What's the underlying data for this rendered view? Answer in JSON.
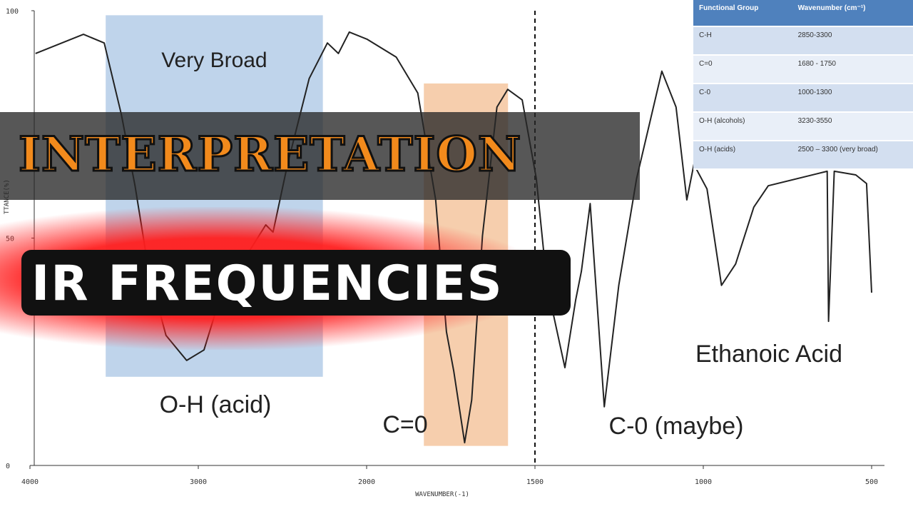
{
  "chart_data": {
    "type": "line",
    "x_label": "WAVENUMBER(-1)",
    "y_label": "TTANCE(%)",
    "xlim": [
      4000,
      500
    ],
    "xticks": [
      4000,
      3000,
      2000,
      1500,
      1000,
      500
    ],
    "ylim": [
      0,
      100
    ],
    "yticks": [
      0,
      50,
      100
    ],
    "color": "#222222",
    "x": [
      3967,
      3682,
      3559,
      3457,
      3376,
      3294,
      3192,
      3069,
      2966,
      2901,
      2772,
      2599,
      2556,
      2470,
      2341,
      2233,
      2168,
      2103,
      1998,
      1912,
      1848,
      1795,
      1763,
      1741,
      1709,
      1688,
      1656,
      1613,
      1581,
      1538,
      1496,
      1464,
      1411,
      1379,
      1362,
      1336,
      1294,
      1251,
      1198,
      1123,
      1081,
      1049,
      1028,
      989,
      946,
      904,
      850,
      807,
      632,
      628,
      611,
      547,
      515,
      500
    ],
    "values": [
      90.6,
      94.8,
      92.9,
      77.2,
      61.5,
      42.7,
      28.6,
      23.1,
      25.4,
      33.3,
      42.7,
      52.9,
      51.3,
      66.2,
      85.1,
      92.9,
      90.6,
      95.3,
      93.7,
      89.8,
      81.9,
      58.4,
      29.4,
      20.7,
      5.0,
      14.4,
      50.5,
      78.8,
      82.7,
      80.4,
      63.1,
      39.6,
      21.5,
      36.4,
      42.7,
      57.6,
      12.9,
      39.6,
      63.1,
      86.7,
      78.8,
      58.4,
      66.2,
      60.8,
      39.6,
      44.3,
      56.8,
      61.5,
      64.7,
      31.7,
      64.7,
      63.9,
      62.0,
      38.0
    ],
    "regions": [
      {
        "label": "Very Broad",
        "from": 3550,
        "to": 2260,
        "ymin": 19.5,
        "ymax": 99,
        "color": "#b8cfe9"
      },
      {
        "label": "C=0",
        "from": 1830,
        "to": 1580,
        "ymin": 4.3,
        "ymax": 84,
        "color": "#f5c9a4"
      }
    ],
    "vline": 1500,
    "annotations": [
      "O-H (acid)",
      "C-0 (maybe)",
      "Ethanoic Acid"
    ]
  },
  "banners": [
    "INTERPRETATION",
    "IR FREQUENCIES"
  ],
  "table": {
    "header": [
      "Functional Group",
      "Wavenumber (cm⁻¹)"
    ],
    "rows": [
      [
        "C-H",
        "2850-3300"
      ],
      [
        "C=0",
        "1680 - 1750"
      ],
      [
        "C-0",
        "1000-1300"
      ],
      [
        "O-H (alcohols)",
        "3230-3550"
      ],
      [
        "O-H (acids)",
        "2500 – 3300 (very broad)"
      ]
    ]
  }
}
